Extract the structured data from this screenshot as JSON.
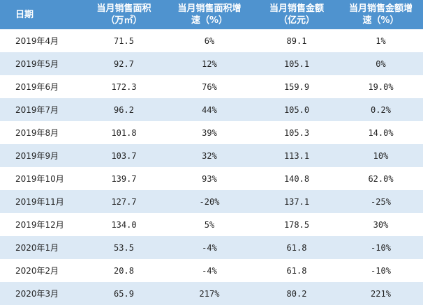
{
  "table": {
    "header": [
      [
        "日期"
      ],
      [
        "当月销售面积",
        "（万㎡）"
      ],
      [
        "当月销售面积增",
        "速（%）"
      ],
      [
        "当月销售金额",
        "（亿元）"
      ],
      [
        "当月销售金额增",
        "速（%）"
      ]
    ],
    "rows": [
      [
        "2019年4月",
        "71.5",
        "6%",
        "89.1",
        "1%"
      ],
      [
        "2019年5月",
        "92.7",
        "12%",
        "105.1",
        "0%"
      ],
      [
        "2019年6月",
        "172.3",
        "76%",
        "159.9",
        "19.0%"
      ],
      [
        "2019年7月",
        "96.2",
        "44%",
        "105.0",
        "0.2%"
      ],
      [
        "2019年8月",
        "101.8",
        "39%",
        "105.3",
        "14.0%"
      ],
      [
        "2019年9月",
        "103.7",
        "32%",
        "113.1",
        "10%"
      ],
      [
        "2019年10月",
        "139.7",
        "93%",
        "140.8",
        "62.0%"
      ],
      [
        "2019年11月",
        "127.7",
        "-20%",
        "137.1",
        "-25%"
      ],
      [
        "2019年12月",
        "134.0",
        "5%",
        "178.5",
        "30%"
      ],
      [
        "2020年1月",
        "53.5",
        "-4%",
        "61.8",
        "-10%"
      ],
      [
        "2020年2月",
        "20.8",
        "-4%",
        "61.8",
        "-10%"
      ],
      [
        "2020年3月",
        "65.9",
        "217%",
        "80.2",
        "221%"
      ]
    ]
  }
}
